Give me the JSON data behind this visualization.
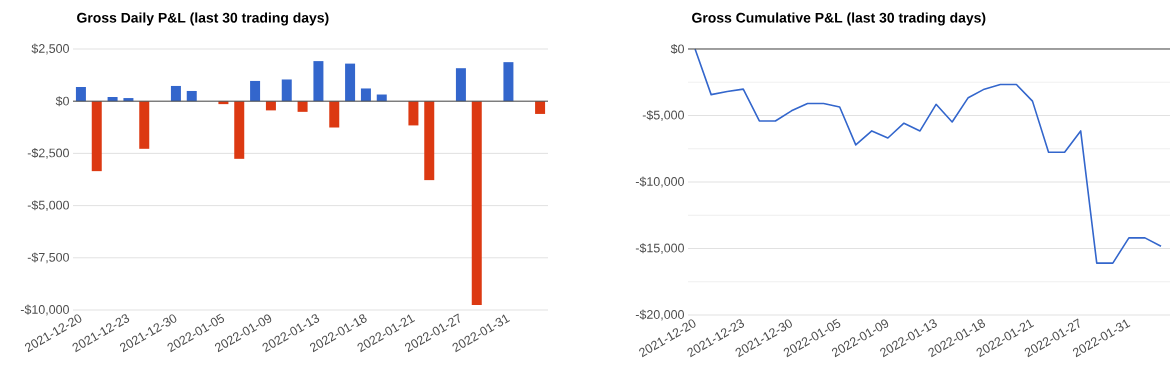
{
  "chart_data": [
    {
      "type": "bar",
      "title": "Gross Daily P&L (last 30 trading days)",
      "categories": [
        "2021-12-20",
        null,
        null,
        "2021-12-23",
        null,
        null,
        "2021-12-30",
        null,
        null,
        "2022-01-05",
        null,
        null,
        "2022-01-09",
        null,
        null,
        "2022-01-13",
        null,
        null,
        "2022-01-18",
        null,
        null,
        "2022-01-21",
        null,
        null,
        "2022-01-27",
        null,
        null,
        "2022-01-31",
        null,
        null
      ],
      "values": [
        680,
        -3350,
        200,
        150,
        -2280,
        0,
        730,
        490,
        0,
        -140,
        -2760,
        970,
        -440,
        1040,
        -510,
        1920,
        -1260,
        1800,
        610,
        320,
        0,
        -1160,
        -3780,
        0,
        1580,
        -9760,
        0,
        1870,
        0,
        -610
      ],
      "colors": [
        "#3366cc",
        "#dc3912",
        "#3366cc",
        "#3366cc",
        "#dc3912",
        "#3366cc",
        "#3366cc",
        "#3366cc",
        "#3366cc",
        "#dc3912",
        "#dc3912",
        "#3366cc",
        "#dc3912",
        "#3366cc",
        "#dc3912",
        "#3366cc",
        "#dc3912",
        "#3366cc",
        "#3366cc",
        "#3366cc",
        "#3366cc",
        "#dc3912",
        "#dc3912",
        "#3366cc",
        "#3366cc",
        "#dc3912",
        "#3366cc",
        "#3366cc",
        "#3366cc",
        "#dc3912"
      ],
      "ylim": [
        -10000,
        2500
      ],
      "yticks": [
        {
          "value": -10000,
          "label": "-$10,000"
        },
        {
          "value": -7500,
          "label": "-$7,500"
        },
        {
          "value": -5000,
          "label": "-$5,000"
        },
        {
          "value": -2500,
          "label": "-$2,500"
        },
        {
          "value": 0,
          "label": "$0"
        },
        {
          "value": 2500,
          "label": "$2,500"
        }
      ],
      "grid": "y"
    },
    {
      "type": "line",
      "title": "Gross Cumulative P&L (last 30 trading days)",
      "categories": [
        "2021-12-20",
        null,
        null,
        "2021-12-23",
        null,
        null,
        "2021-12-30",
        null,
        null,
        "2022-01-05",
        null,
        null,
        "2022-01-09",
        null,
        null,
        "2022-01-13",
        null,
        null,
        "2022-01-18",
        null,
        null,
        "2022-01-21",
        null,
        null,
        "2022-01-27",
        null,
        null,
        "2022-01-31",
        null,
        null
      ],
      "values": [
        0,
        -3430,
        -3200,
        -3020,
        -5410,
        -5410,
        -4650,
        -4100,
        -4100,
        -4360,
        -7210,
        -6160,
        -6690,
        -5580,
        -6160,
        -4160,
        -5490,
        -3660,
        -3020,
        -2670,
        -2670,
        -3920,
        -7760,
        -7760,
        -6160,
        -16100,
        -16100,
        -14200,
        -14200,
        -14830
      ],
      "color": "#3366cc",
      "ylim": [
        -20000,
        0
      ],
      "yticks": [
        {
          "value": -20000,
          "label": "-$20,000"
        },
        {
          "value": -17500,
          "label": null
        },
        {
          "value": -15000,
          "label": "-$15,000"
        },
        {
          "value": -12500,
          "label": null
        },
        {
          "value": -10000,
          "label": "-$10,000"
        },
        {
          "value": -7500,
          "label": null
        },
        {
          "value": -5000,
          "label": "-$5,000"
        },
        {
          "value": -2500,
          "label": null
        },
        {
          "value": 0,
          "label": "$0"
        }
      ],
      "grid": "y"
    }
  ]
}
